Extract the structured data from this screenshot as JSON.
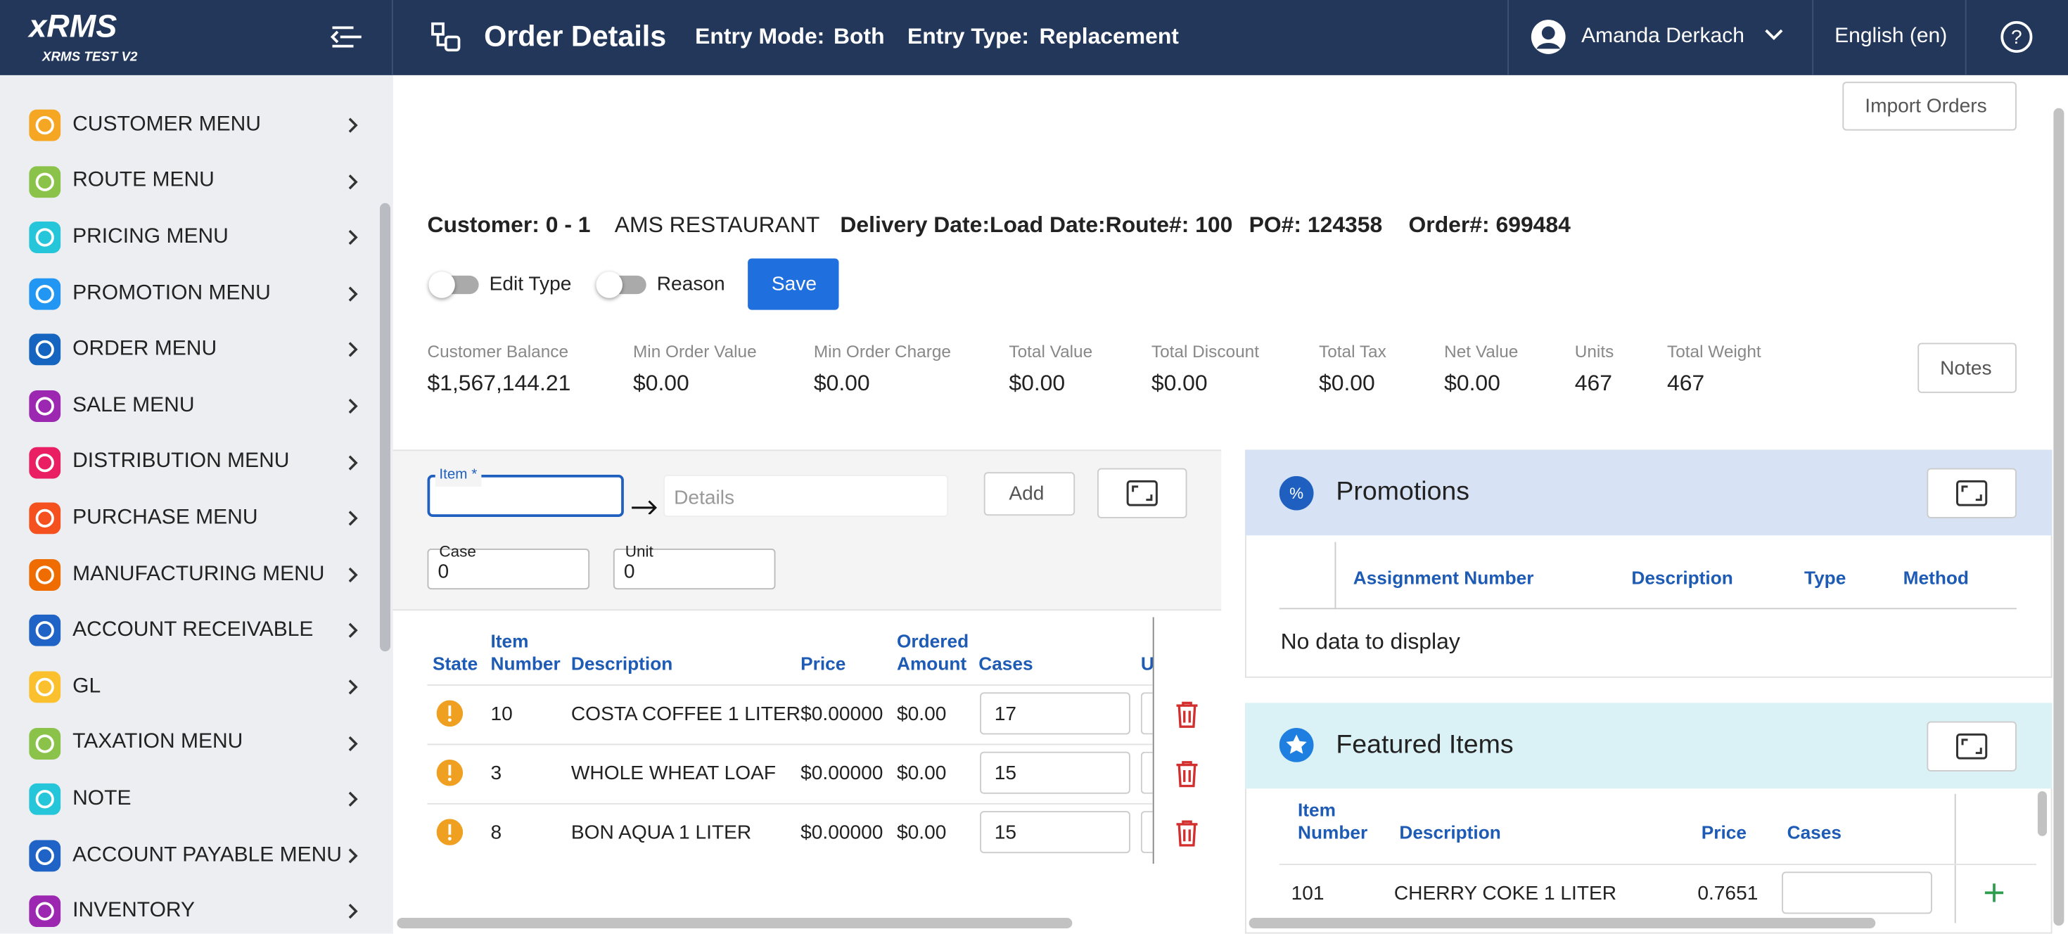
{
  "sidebar": {
    "logo": "xRMS",
    "subtitle": "XRMS TEST V2",
    "menu": [
      "CUSTOMER MENU",
      "ROUTE MENU",
      "PRICING MENU",
      "PROMOTION MENU",
      "ORDER MENU",
      "SALE MENU",
      "DISTRIBUTION MENU",
      "PURCHASE MENU",
      "MANUFACTURING MENU",
      "ACCOUNT RECEIVABLE",
      "GL",
      "TAXATION MENU",
      "NOTE",
      "ACCOUNT PAYABLE MENU",
      "INVENTORY"
    ]
  },
  "header": {
    "title": "Order Details",
    "entry_mode_label": "Entry Mode:",
    "entry_mode": "Both",
    "entry_type_label": "Entry Type:",
    "entry_type": "Replacement",
    "user": "Amanda Derkach",
    "language": "English (en)"
  },
  "order": {
    "import_button": "Import Orders",
    "info": [
      "Customer: 0 - 1",
      "AMS RESTAURANT",
      "Delivery Date:Load Date:Route#: 100",
      "PO#: 124358",
      "Order#: 699484"
    ],
    "toggles": [
      "Edit Type",
      "Reason"
    ],
    "save": "Save",
    "summary": [
      {
        "label": "Customer Balance",
        "value": "$1,567,144.21"
      },
      {
        "label": "Min Order Value",
        "value": "$0.00"
      },
      {
        "label": "Min Order Charge",
        "value": "$0.00"
      },
      {
        "label": "Total Value",
        "value": "$0.00"
      },
      {
        "label": "Total Discount",
        "value": "$0.00"
      },
      {
        "label": "Total Tax",
        "value": "$0.00"
      },
      {
        "label": "Net Value",
        "value": "$0.00"
      },
      {
        "label": "Units",
        "value": "467"
      },
      {
        "label": "Total Weight",
        "value": "467"
      }
    ],
    "notes": "Notes"
  },
  "entry": {
    "item_label": "Item *",
    "details_placeholder": "Details",
    "add": "Add",
    "case_label": "Case",
    "case_value": "0",
    "unit_label": "Unit",
    "unit_value": "0"
  },
  "items_table": {
    "columns": [
      "State",
      "Item Number",
      "Description",
      "Price",
      "Ordered Amount",
      "Cases",
      "U"
    ],
    "rows": [
      [
        "10",
        "COSTA COFFEE 1 LITER",
        "$0.00000",
        "$0.00",
        "17"
      ],
      [
        "3",
        "WHOLE WHEAT LOAF",
        "$0.00000",
        "$0.00",
        "15"
      ],
      [
        "8",
        "BON AQUA 1 LITER",
        "$0.00000",
        "$0.00",
        "15"
      ]
    ]
  },
  "promotions": {
    "title": "Promotions",
    "columns": [
      "Assignment Number",
      "Description",
      "Type",
      "Method"
    ],
    "empty": "No data to display"
  },
  "featured": {
    "title": "Featured Items",
    "columns": [
      "Item Number",
      "Description",
      "Price",
      "Cases"
    ],
    "rows": [
      [
        "101",
        "CHERRY COKE 1 LITER",
        "0.7651"
      ]
    ]
  }
}
